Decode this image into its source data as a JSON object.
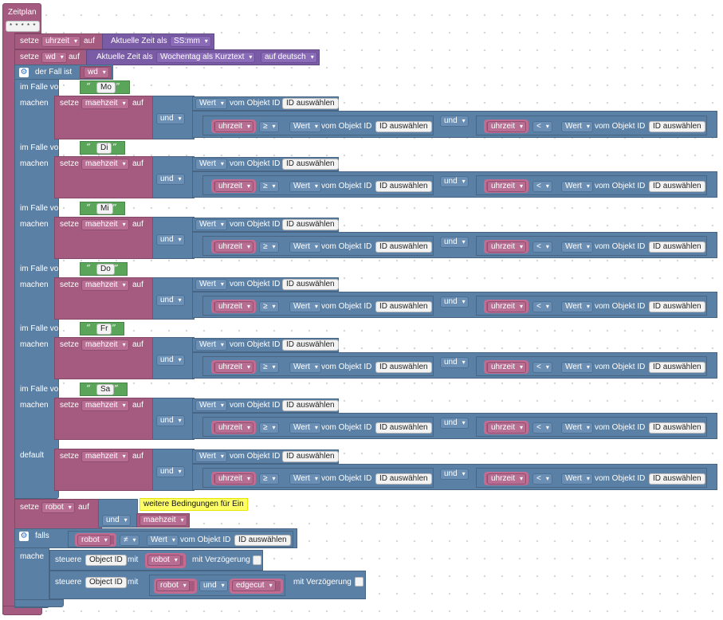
{
  "event": {
    "title": "Zeitplan",
    "schedule_field": "* * * * *"
  },
  "labels": {
    "setze": "setze",
    "auf": "auf",
    "und": "und",
    "im_falle_von": "im Falle von",
    "machen": "machen",
    "default": "default",
    "der_fall_ist": "der Fall ist",
    "falls": "falls",
    "mache": "mache",
    "steuere": "steuere",
    "mit": "mit",
    "mit_verzoegerung": "mit Verzögerung",
    "vom_objekt_id": "vom Objekt ID",
    "aktuelle_zeit_als": "Aktuelle Zeit als"
  },
  "vars": {
    "uhrzeit": "uhrzeit",
    "wd": "wd",
    "maehzeit": "maehzeit",
    "robot": "robot",
    "edgecut": "edgecut"
  },
  "time_formats": {
    "ssmm": "SS:mm",
    "wochentag": "Wochentag als Kurztext",
    "lang": "auf deutsch"
  },
  "ops": {
    "gte": "≥",
    "lt": "<",
    "neq": "≠"
  },
  "fields": {
    "wert": "Wert",
    "id_auswaehlen": "ID auswählen",
    "object_id": "Object ID"
  },
  "cases": [
    {
      "day": "Mo"
    },
    {
      "day": "Di"
    },
    {
      "day": "Mi"
    },
    {
      "day": "Do"
    },
    {
      "day": "Fr"
    },
    {
      "day": "Sa"
    }
  ],
  "comment": "weitere Bedingungen für Ein",
  "colors": {
    "logic": "#5b80a5",
    "variable": "#a55b80",
    "time": "#7a5ba5",
    "text": "#5ba55b"
  }
}
